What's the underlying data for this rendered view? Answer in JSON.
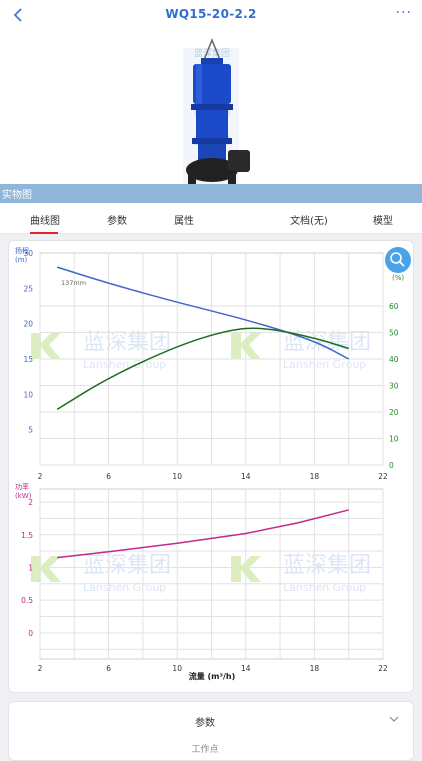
{
  "header": {
    "title": "WQ15-20-2.2",
    "back_icon": "chevron-left-icon",
    "more_label": "···"
  },
  "photo": {
    "caption": "实物图"
  },
  "tabs": [
    {
      "label": "曲线图",
      "active": true
    },
    {
      "label": "参数"
    },
    {
      "label": "属性"
    },
    {
      "label": "文档(无)"
    },
    {
      "label": "模型"
    }
  ],
  "chart_data": [
    {
      "type": "line",
      "ylabel_left": "扬程\n(m)",
      "ylabel_right": "效率\n(%)",
      "xlim": [
        2,
        22
      ],
      "x_ticks": [
        2,
        6,
        10,
        14,
        18,
        22
      ],
      "ylim_left": [
        0,
        30
      ],
      "y_ticks_left": [
        5,
        10,
        15,
        20,
        25,
        30
      ],
      "ylim_right": [
        0,
        80
      ],
      "y_ticks_right": [
        0,
        10,
        20,
        30,
        40,
        50,
        60
      ],
      "annotation": "137mm",
      "series": [
        {
          "axis": "left",
          "color": "#4466cc",
          "x": [
            3,
            6,
            10,
            14,
            18,
            20
          ],
          "y": [
            28,
            25.7,
            23,
            20.6,
            17.6,
            15
          ]
        },
        {
          "axis": "right",
          "color": "#1f6b1f",
          "x": [
            3,
            6,
            10,
            13,
            15,
            18,
            20
          ],
          "y": [
            21,
            33,
            45,
            51,
            52,
            48,
            44
          ]
        }
      ]
    },
    {
      "type": "line",
      "ylabel": "功率\n(kW)",
      "xlabel": "流量 (m³/h)",
      "xlim": [
        2,
        22
      ],
      "x_ticks": [
        2,
        6,
        10,
        14,
        18,
        22
      ],
      "ylim": [
        -0.4,
        2.2
      ],
      "y_ticks": [
        0,
        0.5,
        1,
        1.5,
        2
      ],
      "series": [
        {
          "color": "#c02a8a",
          "x": [
            3,
            6,
            10,
            14,
            17,
            20
          ],
          "y": [
            1.15,
            1.24,
            1.37,
            1.52,
            1.68,
            1.88
          ]
        }
      ]
    }
  ],
  "watermark": {
    "cn": "蓝深集团",
    "en": "Lanshen Group"
  },
  "zoom_icon": "search-icon",
  "section": {
    "label": "参数",
    "chevron": "chevron-down-icon",
    "sub": "工作点"
  }
}
